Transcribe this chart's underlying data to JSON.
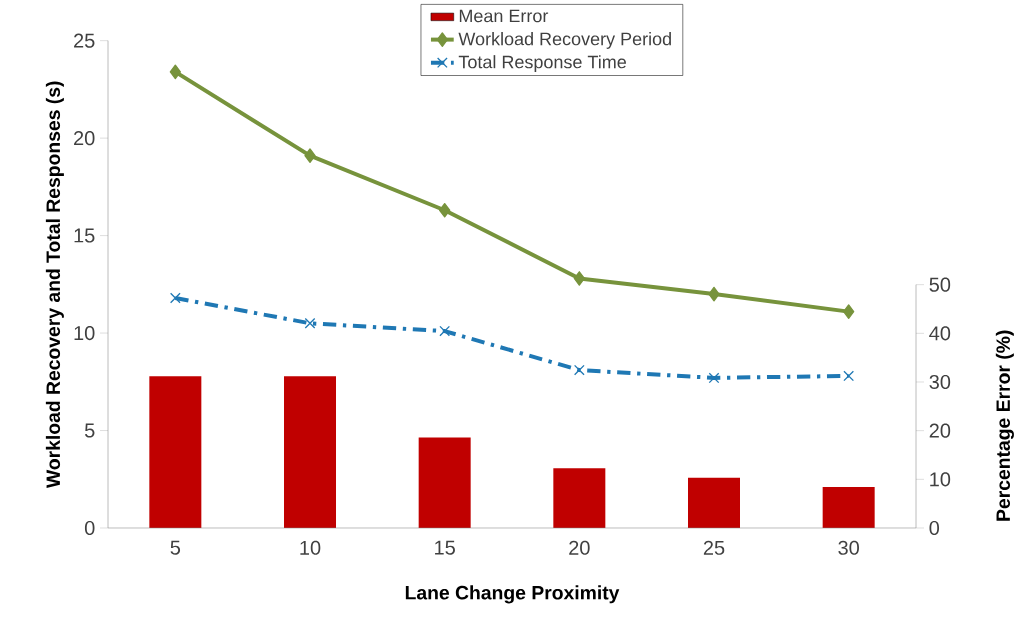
{
  "chart_data": {
    "type": "bar",
    "xlabel": "Lane Change Proximity",
    "ylabel": "Workload Recovery and Total Responses (s)",
    "y2label": "Percentage Error (%)",
    "categories": [
      "5",
      "10",
      "15",
      "20",
      "25",
      "30"
    ],
    "series": [
      {
        "name": "Mean Error",
        "color": "#c00000",
        "axis": "y2",
        "values": [
          31.2,
          31.2,
          18.6,
          12.3,
          10.3,
          8.4
        ]
      },
      {
        "name": "Workload Recovery Period",
        "type": "line",
        "color": "#77933c",
        "marker": "diamond",
        "line_style": "solid",
        "values": [
          23.4,
          19.1,
          16.3,
          12.8,
          12.0,
          11.1
        ]
      },
      {
        "name": "Total Response Time",
        "type": "line",
        "color": "#1f78b4",
        "marker": "cross",
        "line_style": "dashed",
        "values": [
          11.8,
          10.5,
          10.1,
          8.1,
          7.7,
          7.8
        ]
      }
    ],
    "ylim": [
      0,
      25
    ],
    "yticks": [
      0,
      5,
      10,
      15,
      20,
      25
    ],
    "y2lim": [
      0,
      50
    ],
    "y2ticks": [
      0,
      10,
      20,
      30,
      40,
      50
    ],
    "legend": "top right"
  }
}
